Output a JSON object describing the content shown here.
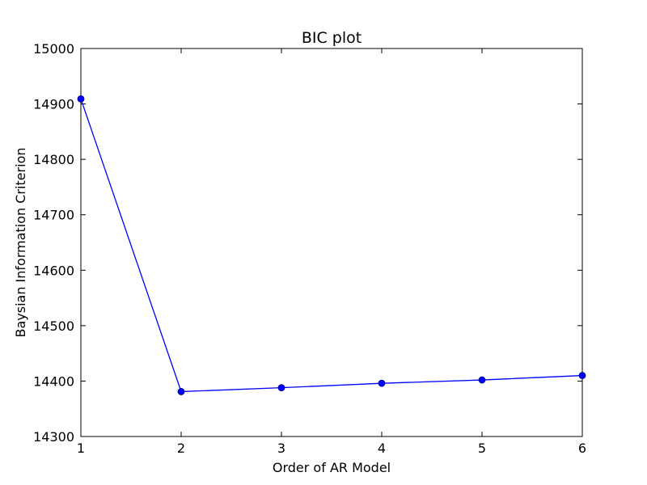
{
  "chart_data": {
    "type": "line",
    "title": "BIC plot",
    "xlabel": "Order of AR Model",
    "ylabel": "Baysian Information Criterion",
    "xlim": [
      1,
      6
    ],
    "ylim": [
      14300,
      15000
    ],
    "xticks": [
      1,
      2,
      3,
      4,
      5,
      6
    ],
    "yticks": [
      14300,
      14400,
      14500,
      14600,
      14700,
      14800,
      14900,
      15000
    ],
    "grid": false,
    "legend": false,
    "series": [
      {
        "color": "#0000ff",
        "marker": "circle",
        "x": [
          1,
          2,
          3,
          4,
          5,
          6
        ],
        "y": [
          14909,
          14381,
          14388,
          14396,
          14402,
          14410
        ]
      }
    ]
  }
}
